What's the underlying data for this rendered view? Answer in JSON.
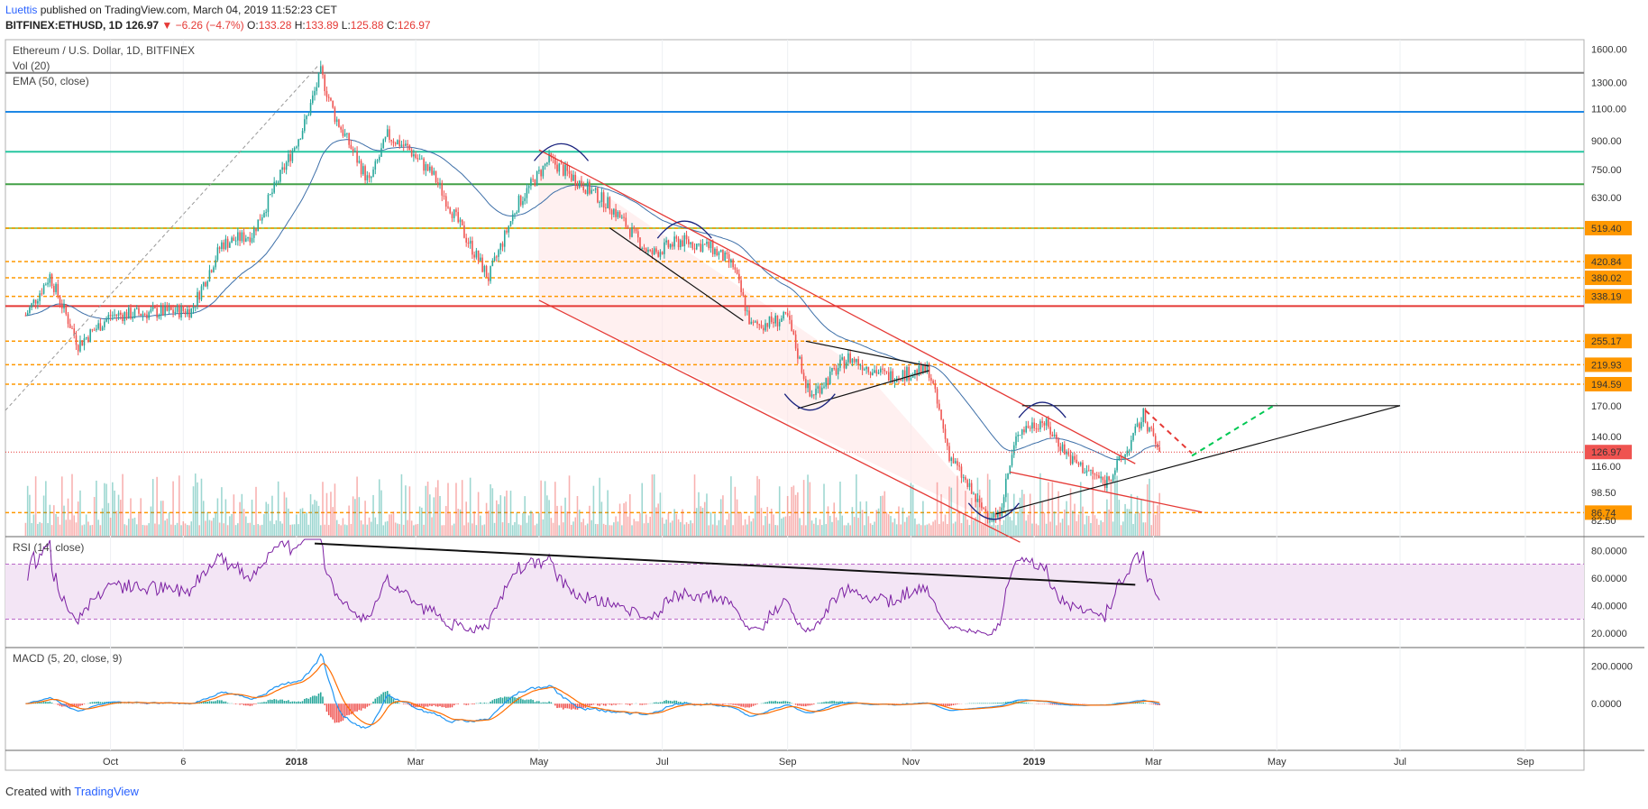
{
  "header": {
    "author": "Luettis",
    "published": "published on TradingView.com, March 04, 2019 11:52:23 CET",
    "symbol": "BITFINEX:ETHUSD, 1D",
    "last": "126.97",
    "change": "▼ −6.26 (−4.7%)",
    "ohlc_labels": {
      "o": "O:",
      "h": "H:",
      "l": "L:",
      "c": "C:"
    },
    "ohlc_values": {
      "o": "133.28",
      "h": "133.89",
      "l": "125.88",
      "c": "126.97"
    }
  },
  "legend": {
    "title": "Ethereum / U.S. Dollar, 1D, BITFINEX",
    "vol": "Vol (20)",
    "ema": "EMA (50, close)",
    "rsi": "RSI (14, close)",
    "macd": "MACD (5, 20, close, 9)"
  },
  "footer": {
    "created": "Created with",
    "brand": "TradingView"
  },
  "colors": {
    "up": "#26a69a",
    "down": "#ef5350",
    "ema": "#3d6fa8",
    "rsi": "#7b1fa2",
    "macd": "#2196f3",
    "signal": "#ff6d00",
    "channel": "#e53935",
    "level": "#ff9800"
  },
  "chart_data": [
    {
      "type": "candlestick",
      "title": "Ethereum / U.S. Dollar, 1D, BITFINEX",
      "scale": "log",
      "ylim": [
        75,
        1700
      ],
      "y_ticks": [
        "1600.00",
        "1300.00",
        "1100.00",
        "900.00",
        "750.00",
        "630.00",
        "519.40",
        "420.84",
        "380.02",
        "338.19",
        "255.17",
        "219.93",
        "194.59",
        "170.00",
        "140.00",
        "126.97",
        "116.00",
        "98.50",
        "86.74",
        "82.50"
      ],
      "x_ticks": [
        "Oct",
        "6",
        "2018",
        "Mar",
        "May",
        "Jul",
        "Sep",
        "Nov",
        "2019",
        "Mar",
        "May",
        "Jul",
        "Sep"
      ],
      "close_path": [
        [
          "2017-08-20",
          300
        ],
        [
          "2017-09-01",
          385
        ],
        [
          "2017-09-15",
          250
        ],
        [
          "2017-10-01",
          300
        ],
        [
          "2017-10-20",
          305
        ],
        [
          "2017-11-10",
          310
        ],
        [
          "2017-11-25",
          470
        ],
        [
          "2017-12-10",
          500
        ],
        [
          "2017-12-25",
          740
        ],
        [
          "2018-01-05",
          1000
        ],
        [
          "2018-01-13",
          1380
        ],
        [
          "2018-01-20",
          1050
        ],
        [
          "2018-02-06",
          690
        ],
        [
          "2018-02-15",
          930
        ],
        [
          "2018-02-25",
          860
        ],
        [
          "2018-03-10",
          720
        ],
        [
          "2018-03-25",
          500
        ],
        [
          "2018-04-06",
          380
        ],
        [
          "2018-04-20",
          600
        ],
        [
          "2018-05-06",
          800
        ],
        [
          "2018-05-20",
          700
        ],
        [
          "2018-06-05",
          600
        ],
        [
          "2018-06-25",
          440
        ],
        [
          "2018-07-10",
          480
        ],
        [
          "2018-07-25",
          460
        ],
        [
          "2018-08-05",
          410
        ],
        [
          "2018-08-14",
          280
        ],
        [
          "2018-09-01",
          295
        ],
        [
          "2018-09-12",
          180
        ],
        [
          "2018-10-01",
          230
        ],
        [
          "2018-10-20",
          205
        ],
        [
          "2018-11-10",
          212
        ],
        [
          "2018-11-20",
          125
        ],
        [
          "2018-12-05",
          90
        ],
        [
          "2018-12-14",
          84
        ],
        [
          "2018-12-24",
          145
        ],
        [
          "2019-01-05",
          155
        ],
        [
          "2019-01-20",
          120
        ],
        [
          "2019-02-05",
          105
        ],
        [
          "2019-02-15",
          125
        ],
        [
          "2019-02-24",
          160
        ],
        [
          "2019-03-04",
          126.97
        ]
      ],
      "horizontal_levels": [
        {
          "value": 1380,
          "color": "#808080"
        },
        {
          "value": 1080,
          "color": "#1e88e5"
        },
        {
          "value": 840,
          "color": "#26c6a0"
        },
        {
          "value": 685,
          "color": "#43a047"
        },
        {
          "value": 519.4,
          "color": "#9ccc65"
        },
        {
          "value": 519.4,
          "label": "519.40",
          "dashed": true
        },
        {
          "value": 420.84,
          "label": "420.84",
          "dashed": true
        },
        {
          "value": 380.02,
          "label": "380.02",
          "dashed": true
        },
        {
          "value": 338.19,
          "label": "338.19",
          "dashed": true
        },
        {
          "value": 318,
          "color": "#e53935"
        },
        {
          "value": 255.17,
          "label": "255.17",
          "dashed": true
        },
        {
          "value": 219.93,
          "label": "219.93",
          "dashed": true
        },
        {
          "value": 194.59,
          "label": "194.59",
          "dashed": true
        },
        {
          "value": 86.74,
          "label": "86.74",
          "dashed": true
        }
      ],
      "current_price": 126.97
    },
    {
      "type": "line",
      "title": "RSI (14, close)",
      "ylim": [
        10,
        90
      ],
      "y_ticks": [
        "80.0000",
        "60.0000",
        "40.0000",
        "20.0000"
      ],
      "bands": [
        30,
        70
      ]
    },
    {
      "type": "line",
      "title": "MACD (5, 20, close, 9)",
      "ylim": [
        -250,
        300
      ],
      "y_ticks": [
        "200.0000",
        "0.0000"
      ],
      "series": [
        {
          "values": []
        },
        {
          "values": []
        }
      ]
    }
  ]
}
